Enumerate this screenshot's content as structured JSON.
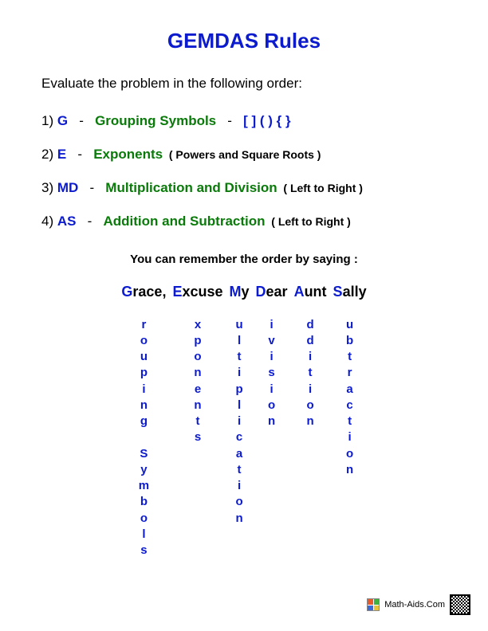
{
  "title": "GEMDAS Rules",
  "subtitle": "Evaluate the problem in the following order:",
  "colors": {
    "blue": "#0b1bcd",
    "green": "#0a7a0a",
    "black": "#000000",
    "background": "#ffffff"
  },
  "rules": [
    {
      "num": "1)",
      "letter": "G",
      "name": "Grouping Symbols",
      "dash2": "-",
      "symbols": "[ ]   ( )   { }"
    },
    {
      "num": "2)",
      "letter": "E",
      "name": "Exponents",
      "note": "( Powers and Square Roots )"
    },
    {
      "num": "3)",
      "letter": "MD",
      "name": "Multiplication and Division",
      "note": "( Left to Right )"
    },
    {
      "num": "4)",
      "letter": "AS",
      "name": "Addition and Subtraction",
      "note": "( Left to Right )"
    }
  ],
  "mnemonic_intro": "You can remember the order by saying :",
  "mnemonic": {
    "words": [
      {
        "first": "G",
        "rest": "race,",
        "column": [
          " ",
          "r",
          "o",
          "u",
          "p",
          "i",
          "n",
          "g",
          " ",
          "S",
          "y",
          "m",
          "b",
          "o",
          "l",
          "s"
        ]
      },
      {
        "first": "E",
        "rest": "xcuse",
        "column": [
          " ",
          "x",
          "p",
          "o",
          "n",
          "e",
          "n",
          "t",
          "s"
        ]
      },
      {
        "first": "M",
        "rest": "y",
        "column": [
          " ",
          "u",
          "l",
          "t",
          "i",
          "p",
          "l",
          "i",
          "c",
          "a",
          "t",
          "i",
          "o",
          "n"
        ]
      },
      {
        "first": "D",
        "rest": "ear",
        "column": [
          " ",
          "i",
          "v",
          "i",
          "s",
          "i",
          "o",
          "n"
        ]
      },
      {
        "first": "A",
        "rest": "unt",
        "column": [
          " ",
          "d",
          "d",
          "i",
          "t",
          "i",
          "o",
          "n"
        ]
      },
      {
        "first": "S",
        "rest": "ally",
        "column": [
          " ",
          "u",
          "b",
          "t",
          "r",
          "a",
          "c",
          "t",
          "i",
          "o",
          "n"
        ]
      }
    ]
  },
  "footer": "Math-Aids.Com"
}
